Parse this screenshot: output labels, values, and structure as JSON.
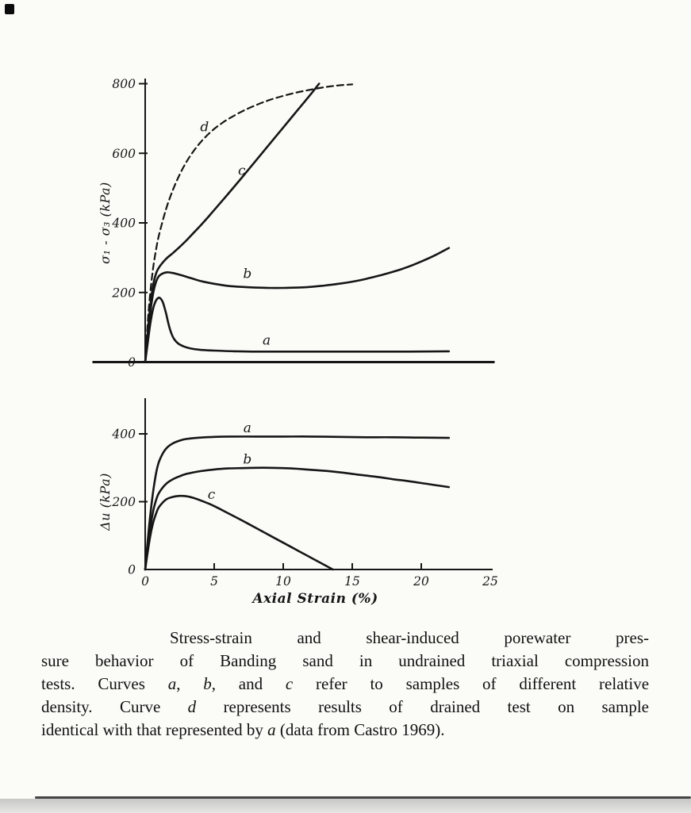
{
  "page": {
    "paper_color": "#fbfbf8",
    "ink_color": "#161616"
  },
  "chart_data": [
    {
      "type": "line",
      "panel": "stress-strain",
      "ylabel": "σ₁ - σ₃ (kPa)",
      "ylim": [
        0,
        800
      ],
      "yticks": [
        0,
        200,
        400,
        600,
        800
      ],
      "xlim": [
        0,
        25
      ],
      "grid": false,
      "legend": "curve letters drawn beside lines",
      "series": [
        {
          "name": "a",
          "style": "solid",
          "points": [
            [
              0,
              0
            ],
            [
              0.2,
              60
            ],
            [
              0.4,
              118
            ],
            [
              0.6,
              157
            ],
            [
              0.8,
              178
            ],
            [
              1,
              185
            ],
            [
              1.15,
              181
            ],
            [
              1.3,
              170
            ],
            [
              1.5,
              142
            ],
            [
              1.7,
              108
            ],
            [
              1.9,
              82
            ],
            [
              2.1,
              66
            ],
            [
              2.4,
              53
            ],
            [
              2.8,
              45
            ],
            [
              3.3,
              39
            ],
            [
              4,
              35
            ],
            [
              5,
              33
            ],
            [
              6.5,
              31
            ],
            [
              8,
              30
            ],
            [
              10,
              30
            ],
            [
              13,
              30
            ],
            [
              16,
              30
            ],
            [
              19,
              30
            ],
            [
              22,
              31
            ]
          ]
        },
        {
          "name": "b",
          "style": "solid",
          "points": [
            [
              0,
              0
            ],
            [
              0.2,
              80
            ],
            [
              0.4,
              152
            ],
            [
              0.6,
              202
            ],
            [
              0.8,
              232
            ],
            [
              1,
              247
            ],
            [
              1.3,
              255
            ],
            [
              1.6,
              258
            ],
            [
              2,
              256
            ],
            [
              2.5,
              251
            ],
            [
              3,
              245
            ],
            [
              3.5,
              239
            ],
            [
              4,
              233
            ],
            [
              5,
              225
            ],
            [
              6,
              219
            ],
            [
              7,
              216
            ],
            [
              8,
              214
            ],
            [
              9,
              213
            ],
            [
              10,
              213
            ],
            [
              11,
              214
            ],
            [
              12,
              216
            ],
            [
              13,
              220
            ],
            [
              14,
              225
            ],
            [
              15,
              231
            ],
            [
              16,
              239
            ],
            [
              17,
              249
            ],
            [
              18,
              260
            ],
            [
              19,
              273
            ],
            [
              20,
              289
            ],
            [
              21,
              307
            ],
            [
              22,
              328
            ]
          ]
        },
        {
          "name": "c",
          "style": "solid",
          "points": [
            [
              0,
              0
            ],
            [
              0.2,
              92
            ],
            [
              0.4,
              172
            ],
            [
              0.6,
              226
            ],
            [
              0.8,
              256
            ],
            [
              1,
              272
            ],
            [
              1.5,
              296
            ],
            [
              2,
              313
            ],
            [
              2.5,
              331
            ],
            [
              3,
              350
            ],
            [
              3.5,
              371
            ],
            [
              4,
              392
            ],
            [
              4.5,
              414
            ],
            [
              5,
              437
            ],
            [
              6,
              483
            ],
            [
              7,
              530
            ],
            [
              8,
              578
            ],
            [
              9,
              626
            ],
            [
              10,
              674
            ],
            [
              11,
              722
            ],
            [
              12,
              770
            ],
            [
              12.6,
              800
            ]
          ]
        },
        {
          "name": "d",
          "style": "dashed",
          "points": [
            [
              0,
              0
            ],
            [
              0.2,
              122
            ],
            [
              0.4,
              212
            ],
            [
              0.6,
              277
            ],
            [
              0.8,
              326
            ],
            [
              1,
              365
            ],
            [
              1.5,
              438
            ],
            [
              2,
              494
            ],
            [
              2.5,
              539
            ],
            [
              3,
              576
            ],
            [
              3.5,
              606
            ],
            [
              4,
              631
            ],
            [
              4.5,
              652
            ],
            [
              5,
              670
            ],
            [
              5.5,
              685
            ],
            [
              6,
              698
            ],
            [
              7,
              720
            ],
            [
              8,
              738
            ],
            [
              9,
              753
            ],
            [
              10,
              765
            ],
            [
              11,
              775
            ],
            [
              12,
              783
            ],
            [
              13,
              790
            ],
            [
              14,
              795
            ],
            [
              15,
              798
            ]
          ]
        }
      ],
      "labels": [
        {
          "text": "d",
          "x": 4.3,
          "y": 663
        },
        {
          "text": "c",
          "x": 7.0,
          "y": 538
        },
        {
          "text": "b",
          "x": 7.4,
          "y": 242
        },
        {
          "text": "a",
          "x": 8.8,
          "y": 50
        }
      ]
    },
    {
      "type": "line",
      "panel": "porewater-pressure",
      "ylabel": "Δu (kPa)",
      "xlabel": "Axial Strain (%)",
      "ylim": [
        0,
        480
      ],
      "yticks": [
        0,
        200,
        400
      ],
      "xlim": [
        0,
        25
      ],
      "xticks": [
        0,
        5,
        10,
        15,
        20,
        25
      ],
      "grid": false,
      "series": [
        {
          "name": "a",
          "style": "solid",
          "points": [
            [
              0,
              0
            ],
            [
              0.2,
              92
            ],
            [
              0.4,
              172
            ],
            [
              0.6,
              236
            ],
            [
              0.8,
              286
            ],
            [
              1,
              318
            ],
            [
              1.3,
              344
            ],
            [
              1.6,
              360
            ],
            [
              2,
              372
            ],
            [
              2.5,
              380
            ],
            [
              3,
              385
            ],
            [
              4,
              389
            ],
            [
              5,
              391
            ],
            [
              6,
              392
            ],
            [
              8,
              392
            ],
            [
              10,
              392
            ],
            [
              12,
              392
            ],
            [
              14,
              391
            ],
            [
              16,
              390
            ],
            [
              18,
              390
            ],
            [
              20,
              389
            ],
            [
              22,
              388
            ]
          ]
        },
        {
          "name": "b",
          "style": "solid",
          "points": [
            [
              0,
              0
            ],
            [
              0.2,
              70
            ],
            [
              0.4,
              131
            ],
            [
              0.6,
              176
            ],
            [
              0.8,
              206
            ],
            [
              1,
              226
            ],
            [
              1.5,
              252
            ],
            [
              2,
              266
            ],
            [
              2.5,
              275
            ],
            [
              3,
              282
            ],
            [
              4,
              290
            ],
            [
              5,
              295
            ],
            [
              6,
              298
            ],
            [
              7,
              299
            ],
            [
              8,
              300
            ],
            [
              9,
              300
            ],
            [
              10,
              299
            ],
            [
              11,
              297
            ],
            [
              12,
              294
            ],
            [
              13,
              291
            ],
            [
              14,
              287
            ],
            [
              15,
              282
            ],
            [
              16,
              277
            ],
            [
              17,
              272
            ],
            [
              18,
              266
            ],
            [
              19,
              261
            ],
            [
              20,
              255
            ],
            [
              21,
              249
            ],
            [
              22,
              243
            ]
          ]
        },
        {
          "name": "c",
          "style": "solid",
          "points": [
            [
              0,
              0
            ],
            [
              0.2,
              56
            ],
            [
              0.4,
              106
            ],
            [
              0.6,
              141
            ],
            [
              0.8,
              166
            ],
            [
              1,
              184
            ],
            [
              1.5,
              206
            ],
            [
              2,
              214
            ],
            [
              2.5,
              217
            ],
            [
              3,
              216
            ],
            [
              3.5,
              211
            ],
            [
              4,
              204
            ],
            [
              4.5,
              196
            ],
            [
              5,
              187
            ],
            [
              6,
              166
            ],
            [
              7,
              145
            ],
            [
              8,
              123
            ],
            [
              9,
              101
            ],
            [
              10,
              79
            ],
            [
              11,
              57
            ],
            [
              12,
              35
            ],
            [
              13,
              13
            ],
            [
              13.6,
              0
            ]
          ]
        }
      ],
      "labels": [
        {
          "text": "a",
          "x": 7.4,
          "y": 405
        },
        {
          "text": "b",
          "x": 7.4,
          "y": 312
        },
        {
          "text": "c",
          "x": 4.8,
          "y": 208
        }
      ]
    }
  ],
  "caption": {
    "lines": [
      {
        "indent": true,
        "segments": [
          {
            "t": "Stress-strain and shear-induced porewater pres-"
          }
        ]
      },
      {
        "segments": [
          {
            "t": "sure behavior of Banding sand in undrained triaxial compression"
          }
        ]
      },
      {
        "segments": [
          {
            "t": "tests. Curves "
          },
          {
            "t": "a",
            "i": true
          },
          {
            "t": ", "
          },
          {
            "t": "b",
            "i": true
          },
          {
            "t": ", and "
          },
          {
            "t": "c",
            "i": true
          },
          {
            "t": " refer to samples of different relative"
          }
        ]
      },
      {
        "segments": [
          {
            "t": "density. Curve "
          },
          {
            "t": "d",
            "i": true
          },
          {
            "t": " represents results of drained test on sample"
          }
        ]
      },
      {
        "segments": [
          {
            "t": "identical with that represented by "
          },
          {
            "t": "a",
            "i": true
          },
          {
            "t": " (data from Castro 1969)."
          }
        ]
      }
    ]
  }
}
